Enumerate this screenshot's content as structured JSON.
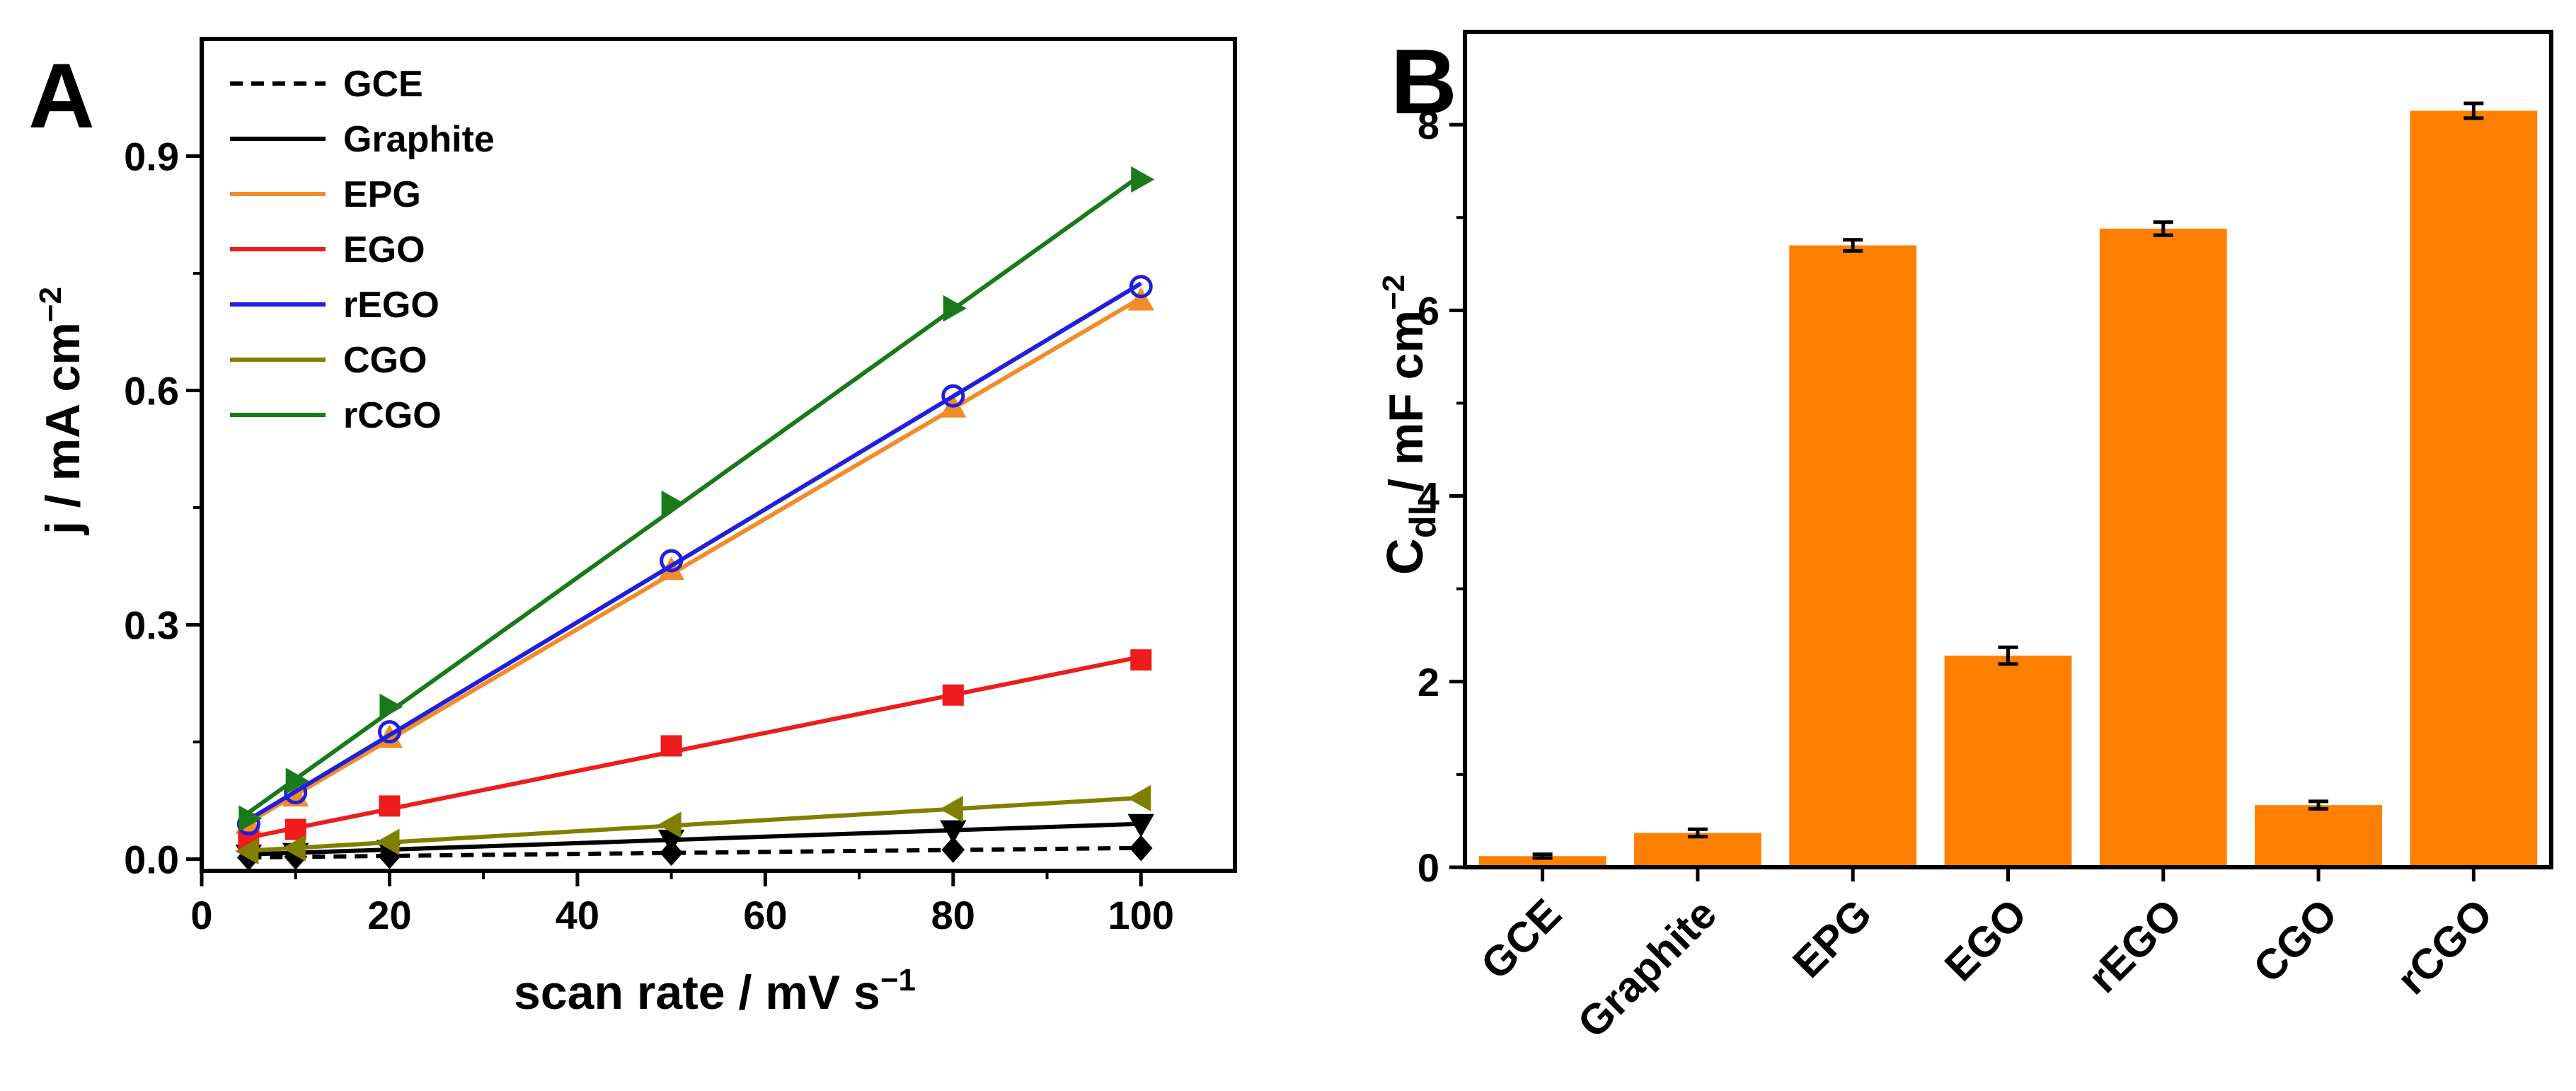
{
  "chart_data": [
    {
      "panel": "A",
      "type": "line",
      "xlabel": "scan rate / mV s",
      "xlabel_sup": "−1",
      "ylabel": "j / mA cm",
      "ylabel_sup": "−2",
      "xlim": [
        0,
        110
      ],
      "ylim": [
        -0.015,
        1.05
      ],
      "xticks": [
        0,
        20,
        40,
        60,
        80,
        100
      ],
      "xtick_labels": [
        "0",
        "20",
        "40",
        "60",
        "80",
        "100"
      ],
      "yticks": [
        0.0,
        0.3,
        0.6,
        0.9
      ],
      "ytick_labels": [
        "0.0",
        "0.3",
        "0.6",
        "0.9"
      ],
      "legend_position": "top-left",
      "x": [
        5,
        10,
        20,
        50,
        80,
        100
      ],
      "series": [
        {
          "name": "GCE",
          "color": "#000000",
          "dash": true,
          "marker": "diamond",
          "values": [
            0.002,
            0.003,
            0.004,
            0.008,
            0.012,
            0.014
          ]
        },
        {
          "name": "Graphite",
          "color": "#000000",
          "dash": false,
          "marker": "triangle-down",
          "values": [
            0.006,
            0.008,
            0.012,
            0.025,
            0.037,
            0.045
          ]
        },
        {
          "name": "EPG",
          "color": "#f28c28",
          "dash": false,
          "marker": "triangle-up",
          "values": [
            0.045,
            0.08,
            0.155,
            0.37,
            0.578,
            0.715
          ]
        },
        {
          "name": "EGO",
          "color": "#ee1c1c",
          "dash": false,
          "marker": "square",
          "values": [
            0.022,
            0.038,
            0.068,
            0.145,
            0.21,
            0.255
          ]
        },
        {
          "name": "rEGO",
          "color": "#1f1fdd",
          "dash": false,
          "marker": "circle",
          "values": [
            0.045,
            0.085,
            0.163,
            0.382,
            0.593,
            0.733
          ]
        },
        {
          "name": "CGO",
          "color": "#808000",
          "dash": false,
          "marker": "triangle-left",
          "values": [
            0.01,
            0.014,
            0.022,
            0.044,
            0.064,
            0.078
          ]
        },
        {
          "name": "rCGO",
          "color": "#1a7a1a",
          "dash": false,
          "marker": "triangle-right",
          "values": [
            0.052,
            0.1,
            0.195,
            0.455,
            0.705,
            0.87
          ]
        }
      ]
    },
    {
      "panel": "B",
      "type": "bar",
      "ylabel_main": "C",
      "ylabel_sub": "dl",
      "ylabel_rest": " / mF cm",
      "ylabel_sup": "−2",
      "ylim": [
        0,
        9
      ],
      "yticks": [
        0,
        2,
        4,
        6,
        8
      ],
      "ytick_labels": [
        "0",
        "2",
        "4",
        "6",
        "8"
      ],
      "bar_color": "#ff8000",
      "categories": [
        "GCE",
        "Graphite",
        "EPG",
        "EGO",
        "rEGO",
        "CGO",
        "rCGO"
      ],
      "values": [
        0.12,
        0.37,
        6.7,
        2.28,
        6.88,
        0.67,
        8.15
      ],
      "errors": [
        0.02,
        0.04,
        0.06,
        0.09,
        0.07,
        0.04,
        0.08
      ]
    }
  ]
}
